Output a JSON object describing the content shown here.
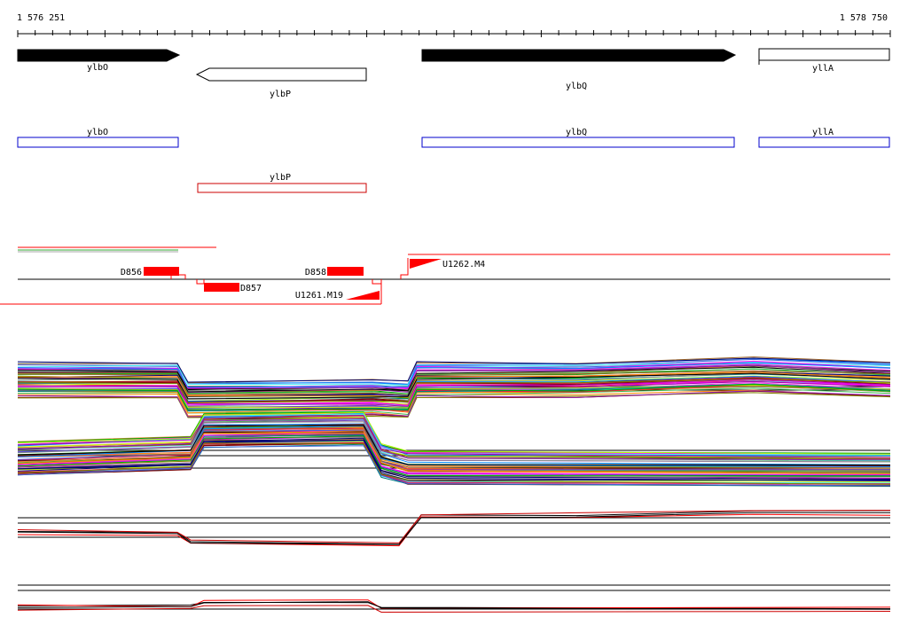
{
  "coordinates": {
    "start": "1 576 251",
    "end": "1 578 750"
  },
  "genes": [
    {
      "name": "ylbO",
      "strand": "+",
      "filled": true
    },
    {
      "name": "ylbP",
      "strand": "-",
      "filled": false
    },
    {
      "name": "ylbQ",
      "strand": "+",
      "filled": true
    },
    {
      "name": "yllA",
      "strand": "+",
      "filled": false
    }
  ],
  "annotation_boxes": [
    {
      "name": "ylbO",
      "color": "#0000cc"
    },
    {
      "name": "ylbQ",
      "color": "#0000cc"
    },
    {
      "name": "yllA",
      "color": "#0000cc"
    },
    {
      "name": "ylbP",
      "color": "#cc0000"
    }
  ],
  "features": [
    {
      "name": "D856",
      "type": "block"
    },
    {
      "name": "D857",
      "type": "block"
    },
    {
      "name": "D858",
      "type": "block"
    },
    {
      "name": "U1261.M19",
      "type": "wedge"
    },
    {
      "name": "U1262.M4",
      "type": "wedge"
    }
  ],
  "colors": {
    "gene_fill": "#000000",
    "feature": "#ff0000",
    "annotation_plus": "#0000cc",
    "annotation_minus": "#cc0000"
  }
}
